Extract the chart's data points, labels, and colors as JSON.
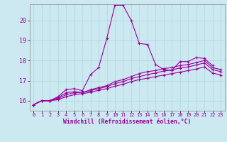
{
  "xlabel": "Windchill (Refroidissement éolien,°C)",
  "bg_color": "#cce8f0",
  "line_color": "#990099",
  "xlim": [
    -0.5,
    23.5
  ],
  "ylim": [
    15.5,
    20.8
  ],
  "xticks": [
    0,
    1,
    2,
    3,
    4,
    5,
    6,
    7,
    8,
    9,
    10,
    11,
    12,
    13,
    14,
    15,
    16,
    17,
    18,
    19,
    20,
    21,
    22,
    23
  ],
  "yticks": [
    16,
    17,
    18,
    19,
    20
  ],
  "series": [
    {
      "x": [
        0,
        1,
        2,
        3,
        4,
        5,
        6,
        7,
        8,
        9,
        10,
        11,
        12,
        13,
        14,
        15,
        16,
        17,
        18,
        19,
        20,
        21,
        22
      ],
      "y": [
        15.8,
        16.0,
        16.0,
        16.2,
        16.55,
        16.6,
        16.5,
        17.3,
        17.65,
        19.1,
        20.75,
        20.75,
        20.0,
        18.85,
        18.8,
        17.8,
        17.55,
        17.5,
        17.95,
        17.95,
        18.15,
        18.1,
        17.75
      ]
    },
    {
      "x": [
        0,
        1,
        2,
        3,
        4,
        5,
        6,
        7,
        8,
        9,
        10,
        11,
        12,
        13,
        14,
        15,
        16,
        17,
        18,
        19,
        20,
        21,
        22,
        23
      ],
      "y": [
        15.8,
        16.0,
        16.0,
        16.15,
        16.4,
        16.45,
        16.4,
        16.55,
        16.65,
        16.75,
        16.95,
        17.05,
        17.2,
        17.35,
        17.45,
        17.5,
        17.6,
        17.65,
        17.75,
        17.8,
        17.9,
        18.0,
        17.65,
        17.55
      ]
    },
    {
      "x": [
        0,
        1,
        2,
        3,
        4,
        5,
        6,
        7,
        8,
        9,
        10,
        11,
        12,
        13,
        14,
        15,
        16,
        17,
        18,
        19,
        20,
        21,
        22,
        23
      ],
      "y": [
        15.8,
        16.0,
        16.0,
        16.1,
        16.3,
        16.4,
        16.4,
        16.5,
        16.6,
        16.7,
        16.85,
        16.95,
        17.1,
        17.2,
        17.3,
        17.38,
        17.48,
        17.53,
        17.63,
        17.68,
        17.78,
        17.88,
        17.55,
        17.45
      ]
    },
    {
      "x": [
        0,
        1,
        2,
        3,
        4,
        5,
        6,
        7,
        8,
        9,
        10,
        11,
        12,
        13,
        14,
        15,
        16,
        17,
        18,
        19,
        20,
        21,
        22,
        23
      ],
      "y": [
        15.8,
        16.0,
        16.0,
        16.05,
        16.2,
        16.3,
        16.35,
        16.42,
        16.52,
        16.6,
        16.72,
        16.82,
        16.95,
        17.05,
        17.12,
        17.2,
        17.28,
        17.35,
        17.42,
        17.5,
        17.58,
        17.68,
        17.38,
        17.28
      ]
    }
  ]
}
